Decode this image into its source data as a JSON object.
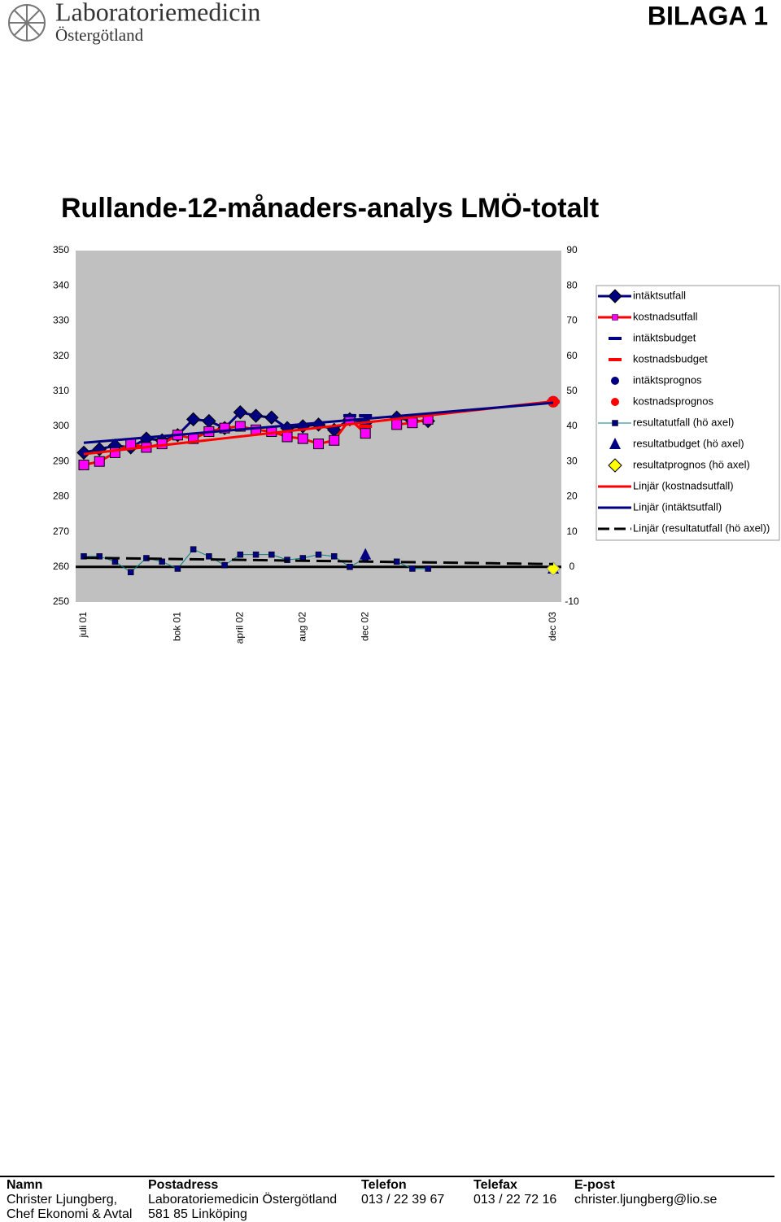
{
  "header": {
    "logo_line1": "Laboratoriemedicin",
    "logo_line2": "Östergötland",
    "attachment": "BILAGA 1"
  },
  "chart_data": {
    "type": "line",
    "title": "Rullande-12-månaders-analys LMÖ-totalt",
    "categories": [
      "juli 01",
      null,
      null,
      null,
      null,
      null,
      "bok 01",
      null,
      null,
      null,
      "april 02",
      null,
      null,
      null,
      "aug 02",
      null,
      null,
      null,
      "dec 02",
      null,
      null,
      null,
      null,
      null,
      null,
      null,
      null,
      null,
      null,
      null,
      "dec 03"
    ],
    "ylim": [
      250,
      350
    ],
    "yticks": [
      250,
      260,
      270,
      280,
      290,
      300,
      310,
      320,
      330,
      340,
      350
    ],
    "y2lim": [
      -10,
      90
    ],
    "y2ticks": [
      -10,
      0,
      10,
      20,
      30,
      40,
      50,
      60,
      70,
      80,
      90
    ],
    "background": "#c0c0c0",
    "legend": "right",
    "series": [
      {
        "name": "intäktsutfall",
        "color": "#000080",
        "marker": "diamond",
        "marker_color": "#000080",
        "line": true,
        "width": 3,
        "values": [
          292.5,
          293.5,
          294.5,
          294,
          296.5,
          296,
          297.5,
          302,
          301.5,
          299.5,
          304,
          303,
          302.5,
          299.5,
          300,
          300.5,
          299,
          302,
          301,
          null,
          302.5,
          301.5,
          301.5,
          null,
          null,
          null,
          null,
          null,
          null,
          null,
          null
        ]
      },
      {
        "name": "kostnadsutfall",
        "color": "#ff0000",
        "marker": "square",
        "marker_color": "#ff00ff",
        "line": true,
        "width": 3,
        "values": [
          289,
          290,
          292.5,
          295,
          294,
          295,
          297.5,
          296.5,
          298.5,
          299.5,
          300,
          299,
          298.5,
          297,
          296.5,
          295,
          296,
          302,
          298,
          null,
          300.5,
          301,
          302,
          null,
          null,
          null,
          null,
          null,
          null,
          null,
          null
        ]
      },
      {
        "name": "intäktsbudget",
        "color": "#000080",
        "marker": "dash",
        "marker_color": "#000080",
        "line": false,
        "values": [
          null,
          null,
          null,
          null,
          null,
          null,
          null,
          null,
          null,
          null,
          null,
          null,
          null,
          null,
          null,
          null,
          null,
          303,
          303,
          null,
          null,
          null,
          null,
          null,
          null,
          null,
          null,
          null,
          null,
          null,
          307
        ]
      },
      {
        "name": "kostnadsbudget",
        "color": "#ff0000",
        "marker": "dash",
        "marker_color": "#ff0000",
        "line": false,
        "values": [
          null,
          null,
          null,
          null,
          null,
          null,
          null,
          null,
          null,
          null,
          null,
          null,
          null,
          null,
          null,
          null,
          null,
          null,
          300,
          null,
          null,
          null,
          null,
          null,
          null,
          null,
          null,
          null,
          null,
          null,
          307
        ]
      },
      {
        "name": "intäktsprognos",
        "color": "#000080",
        "marker": "circle",
        "marker_color": "#000080",
        "line": false,
        "values": [
          null,
          null,
          null,
          null,
          null,
          null,
          null,
          null,
          null,
          null,
          null,
          null,
          null,
          null,
          null,
          null,
          null,
          null,
          null,
          null,
          null,
          null,
          null,
          null,
          null,
          null,
          null,
          null,
          null,
          null,
          307
        ]
      },
      {
        "name": "kostnadsprognos",
        "color": "#ff0000",
        "marker": "circle",
        "marker_color": "#ff0000",
        "line": false,
        "values": [
          null,
          null,
          null,
          null,
          null,
          null,
          null,
          null,
          null,
          null,
          null,
          null,
          null,
          null,
          null,
          null,
          null,
          null,
          null,
          null,
          null,
          null,
          null,
          null,
          null,
          null,
          null,
          null,
          null,
          null,
          307
        ]
      },
      {
        "name": "resultatutfall (hö axel)",
        "axis": "y2",
        "color": "#008080",
        "marker": "small-square",
        "marker_color": "#000080",
        "line": true,
        "width": 1,
        "values": [
          3,
          3,
          1.5,
          -1.5,
          2.5,
          1.5,
          -0.5,
          5,
          3,
          0.5,
          3.5,
          3.5,
          3.5,
          2,
          2.5,
          3.5,
          3,
          0,
          2.5,
          null,
          1.5,
          -0.5,
          -0.5,
          null,
          null,
          null,
          null,
          null,
          null,
          null,
          null
        ]
      },
      {
        "name": "resultatbudget (hö axel)",
        "axis": "y2",
        "color": "#000080",
        "marker": "triangle",
        "marker_color": "#000080",
        "line": false,
        "values": [
          null,
          null,
          null,
          null,
          null,
          null,
          null,
          null,
          null,
          null,
          null,
          null,
          null,
          null,
          null,
          null,
          null,
          null,
          3.5,
          null,
          null,
          null,
          null,
          null,
          null,
          null,
          null,
          null,
          null,
          null,
          -0.5
        ]
      },
      {
        "name": "resultatprognos (hö axel)",
        "axis": "y2",
        "color": "#ffff00",
        "marker": "diamond",
        "marker_color": "#ffff00",
        "line": false,
        "values": [
          null,
          null,
          null,
          null,
          null,
          null,
          null,
          null,
          null,
          null,
          null,
          null,
          null,
          null,
          null,
          null,
          null,
          null,
          null,
          null,
          null,
          null,
          null,
          null,
          null,
          null,
          null,
          null,
          null,
          null,
          -0.5
        ]
      },
      {
        "name": "Linjär (kostnadsutfall)",
        "color": "#ff0000",
        "line": true,
        "width": 3,
        "values": [
          292.1,
          292.6,
          293.1,
          293.6,
          294.1,
          294.6,
          295.1,
          295.6,
          296.1,
          296.6,
          297.1,
          297.6,
          298.1,
          298.6,
          299.1,
          299.6,
          300.1,
          300.6,
          301.1,
          301.6,
          302.1,
          302.6,
          303.1,
          303.6,
          304.1,
          304.6,
          305.1,
          305.6,
          306.1,
          306.6,
          307.1
        ]
      },
      {
        "name": "Linjär (intäktsutfall)",
        "color": "#000080",
        "line": true,
        "width": 3,
        "values": [
          295.3,
          295.68,
          296.06,
          296.44,
          296.82,
          297.2,
          297.58,
          297.96,
          298.34,
          298.72,
          299.1,
          299.48,
          299.86,
          300.24,
          300.62,
          301.0,
          301.38,
          301.76,
          302.14,
          302.52,
          302.9,
          303.28,
          303.66,
          304.04,
          304.42,
          304.8,
          305.18,
          305.56,
          305.94,
          306.32,
          306.7
        ]
      },
      {
        "name": "Linjär (resultatutfall (hö axel))",
        "axis": "y2",
        "color": "#000000",
        "line": true,
        "width": 3,
        "dash": true,
        "values": [
          2.6,
          2.54,
          2.48,
          2.42,
          2.36,
          2.3,
          2.24,
          2.18,
          2.12,
          2.06,
          2.0,
          1.94,
          1.88,
          1.82,
          1.76,
          1.7,
          1.64,
          1.58,
          1.52,
          1.46,
          1.4,
          1.34,
          1.28,
          1.22,
          1.16,
          1.1,
          1.04,
          0.98,
          0.92,
          0.86,
          0.8
        ]
      }
    ]
  },
  "footer": {
    "headers": [
      "Namn",
      "Postadress",
      "Telefon",
      "Telefax",
      "E-post"
    ],
    "rows": [
      [
        "Christer Ljungberg,",
        "Laboratoriemedicin Östergötland",
        "013 / 22 39 67",
        "013 / 22 72 16",
        "christer.ljungberg@lio.se"
      ],
      [
        "Chef Ekonomi & Avtal",
        "581 85 Linköping"
      ]
    ]
  }
}
